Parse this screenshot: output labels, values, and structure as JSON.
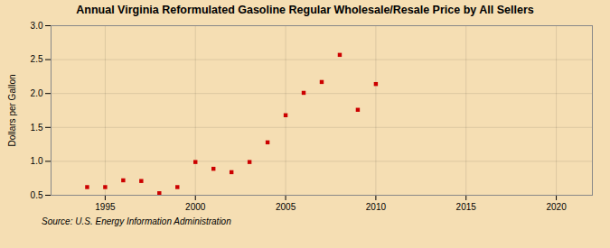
{
  "chart_data": {
    "type": "scatter",
    "title": "Annual Virginia Reformulated Gasoline Regular Wholesale/Resale Price by All Sellers",
    "ylabel": "Dollars per Gallon",
    "source": "Source: U.S. Energy Information Administration",
    "x": [
      1994,
      1995,
      1996,
      1997,
      1998,
      1999,
      2000,
      2001,
      2002,
      2003,
      2004,
      2005,
      2006,
      2007,
      2008,
      2009,
      2010
    ],
    "values": [
      0.62,
      0.62,
      0.72,
      0.71,
      0.53,
      0.62,
      0.99,
      0.89,
      0.84,
      0.99,
      1.28,
      1.68,
      2.01,
      2.17,
      2.57,
      1.76,
      2.14
    ],
    "color": "#cc0000",
    "marker": "square",
    "xlim": [
      1992,
      2022
    ],
    "xticks": [
      1995,
      2000,
      2005,
      2010,
      2015,
      2020
    ],
    "ylim": [
      0.5,
      3.0
    ],
    "yticks": [
      0.5,
      {
        "value": 1,
        "label": "1.0"
      },
      1.5,
      {
        "value": 2,
        "label": "2.0"
      },
      2.5,
      {
        "value": 3,
        "label": "3.0"
      }
    ],
    "grid": true
  }
}
